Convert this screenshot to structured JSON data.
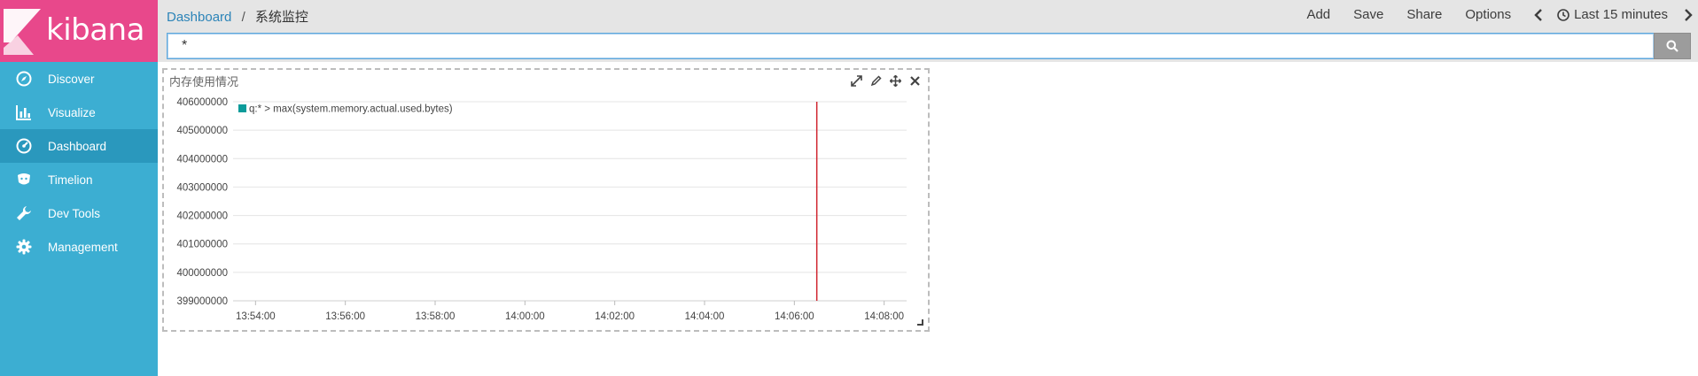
{
  "app": {
    "logo_text": "kibana"
  },
  "sidebar": {
    "items": [
      {
        "label": "Discover",
        "icon": "compass-icon",
        "active": false
      },
      {
        "label": "Visualize",
        "icon": "bar-chart-icon",
        "active": false
      },
      {
        "label": "Dashboard",
        "icon": "dashboard-gauge-icon",
        "active": true
      },
      {
        "label": "Timelion",
        "icon": "timelion-icon",
        "active": false
      },
      {
        "label": "Dev Tools",
        "icon": "wrench-icon",
        "active": false
      },
      {
        "label": "Management",
        "icon": "gear-icon",
        "active": false
      }
    ]
  },
  "topbar": {
    "breadcrumb": {
      "root": "Dashboard",
      "separator": "/",
      "current": "系统监控"
    },
    "actions": {
      "add": "Add",
      "save": "Save",
      "share": "Share",
      "options": "Options",
      "time_range": "Last 15 minutes"
    }
  },
  "search": {
    "value": "*"
  },
  "panel": {
    "title": "内存使用情况",
    "chart_data": {
      "type": "line",
      "title": "",
      "legend": {
        "placement": "top-left",
        "entries": [
          {
            "name": "q:* > max(system.memory.actual.used.bytes)",
            "color": "#0b9b9a"
          }
        ]
      },
      "y_ticks": [
        406000000,
        405000000,
        404000000,
        403000000,
        402000000,
        401000000,
        400000000,
        399000000
      ],
      "y_tick_labels": [
        "406000000",
        "405000000",
        "404000000",
        "403000000",
        "402000000",
        "401000000",
        "400000000",
        "399000000"
      ],
      "ylim": [
        399000000,
        406000000
      ],
      "x_ticks": [
        "13:54:00",
        "13:56:00",
        "13:58:00",
        "14:00:00",
        "14:02:00",
        "14:04:00",
        "14:06:00",
        "14:08:00"
      ],
      "xlim": [
        "13:53:30",
        "14:08:30"
      ],
      "marker": {
        "time": "14:06:30",
        "color": "#d0252f"
      },
      "grid": true,
      "series": [
        {
          "name": "q:* > max(system.memory.actual.used.bytes)",
          "values": []
        }
      ]
    }
  },
  "colors": {
    "sidebar_bg": "#3caed2",
    "sidebar_active": "#2a98bd",
    "logo_bg": "#e8488b",
    "topbar_bg": "#e5e5e5",
    "link": "#2c84b8",
    "series": "#0b9b9a",
    "marker": "#d0252f"
  }
}
